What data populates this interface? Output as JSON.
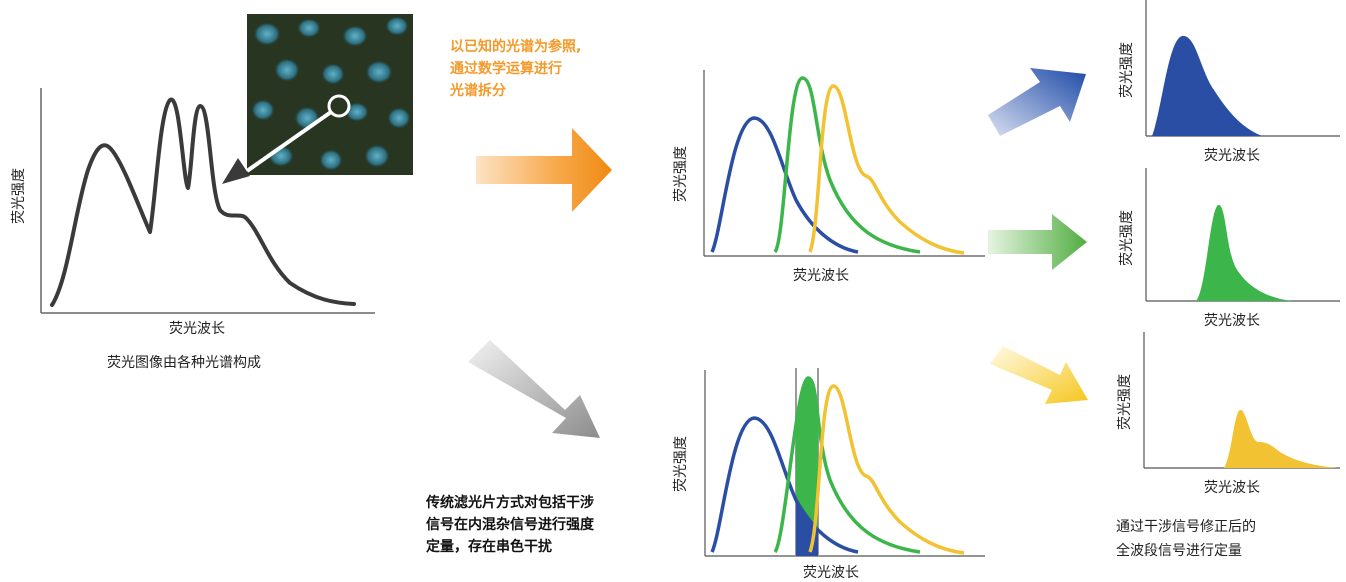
{
  "axis": {
    "y_label": "荧光强度",
    "x_label": "荧光波长"
  },
  "main_spectrum": {
    "caption": "荧光图像由各种光谱构成"
  },
  "notes": {
    "unmixing": [
      "以已知的光谱为参照,",
      "通过数学运算进行",
      "光谱拆分"
    ],
    "filter": [
      "传统滤光片方式对包括干涉",
      "信号在内混杂信号进行强度",
      "定量，存在串色干扰"
    ],
    "corrected": [
      "通过干涉信号修正后的",
      "全波段信号进行定量"
    ]
  },
  "colors": {
    "orange": "#f39a2a",
    "blue": "#2a4ea3",
    "green": "#3cb54a",
    "yellow": "#f2c232",
    "gray": "#888888",
    "curve": "#3a3a3a"
  }
}
